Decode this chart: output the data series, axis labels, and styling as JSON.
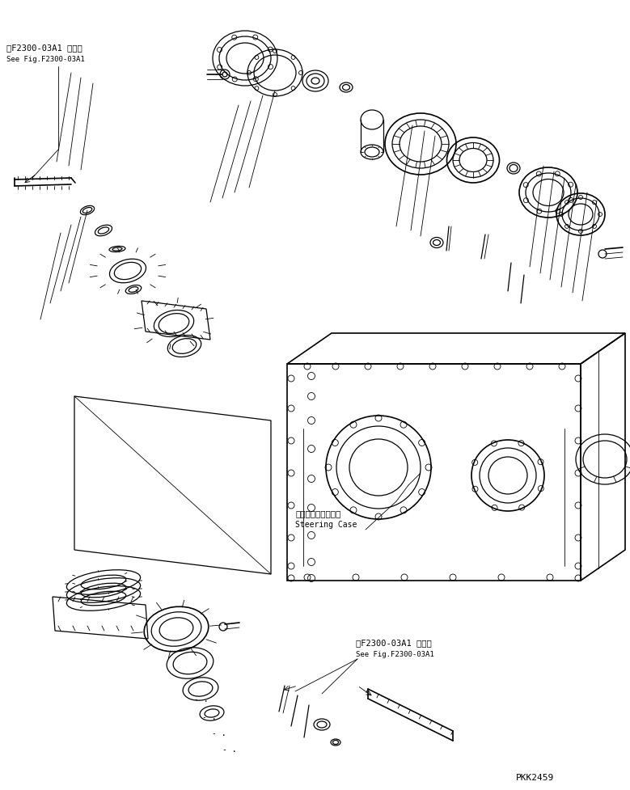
{
  "bg_color": "#ffffff",
  "line_color": "#000000",
  "fig_width": 7.79,
  "fig_height": 9.77,
  "dpi": 100,
  "title_top_left_jp": "第F2300-03A1 図参照",
  "title_top_left_en": "See Fig.F2300-03A1",
  "title_bottom_right_jp": "第F2300-03A1 図参照",
  "title_bottom_right_en": "See Fig.F2300-03A1",
  "steering_case_jp": "ステアリングケース",
  "steering_case_en": "Steering Case",
  "part_number": "PKK2459"
}
